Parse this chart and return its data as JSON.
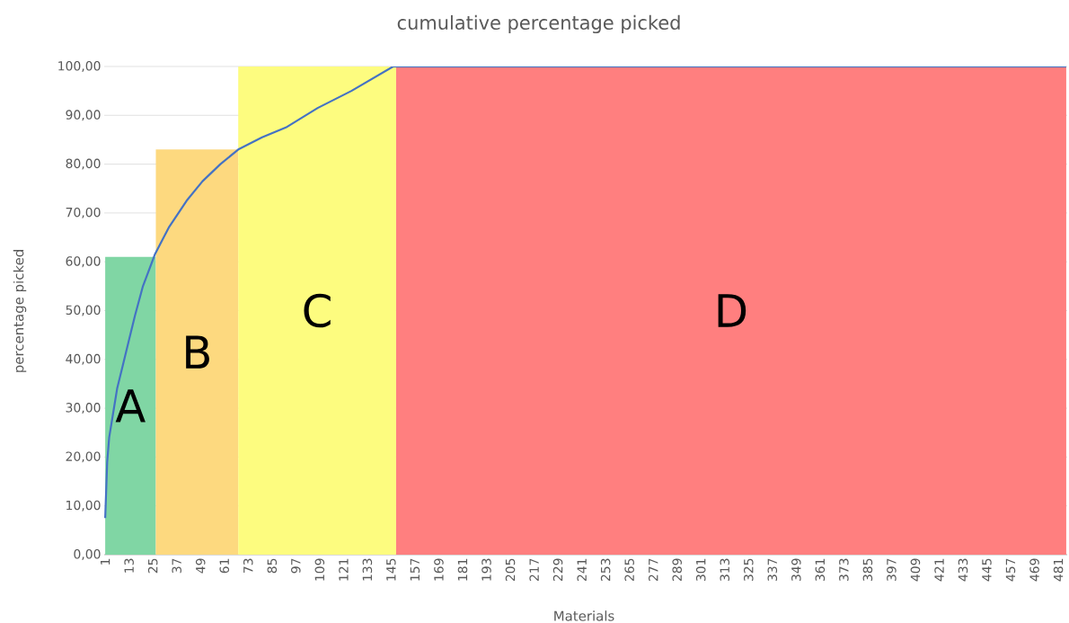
{
  "chart_data": {
    "type": "line",
    "title": "cumulative percentage picked",
    "xlabel": "Materials",
    "ylabel": "percentage picked",
    "series": [
      {
        "name": "A",
        "type": "area",
        "color": "#80d6a4",
        "x": [
          1,
          26.5
        ],
        "values": [
          61,
          61
        ]
      },
      {
        "name": "B",
        "type": "area",
        "color": "#fdd97f",
        "x": [
          26.5,
          68
        ],
        "values": [
          83,
          83
        ]
      },
      {
        "name": "C",
        "type": "area",
        "color": "#fdfc7f",
        "x": [
          68,
          147.5
        ],
        "values": [
          100,
          100
        ]
      },
      {
        "name": "D",
        "type": "area",
        "color": "#ff7f7f",
        "x": [
          147.5,
          485
        ],
        "values": [
          100,
          100
        ]
      },
      {
        "color": "#4472c4",
        "x": [
          1,
          2,
          3,
          5,
          7,
          10,
          13,
          16,
          20,
          26,
          33,
          42,
          50,
          59,
          68,
          80,
          92,
          108,
          125,
          146,
          485
        ],
        "values": [
          7.5,
          19,
          24,
          29,
          34,
          39,
          44,
          49,
          55,
          61.5,
          67,
          72.5,
          76.5,
          80,
          83,
          85.5,
          87.5,
          91.5,
          95,
          100,
          100
        ]
      }
    ],
    "xlim": [
      0.5,
      485.5
    ],
    "xticks": [
      1,
      13,
      25,
      37,
      49,
      61,
      73,
      85,
      97,
      109,
      121,
      133,
      145,
      157,
      169,
      181,
      193,
      205,
      217,
      229,
      241,
      253,
      265,
      277,
      289,
      301,
      313,
      325,
      337,
      349,
      361,
      373,
      385,
      397,
      409,
      421,
      433,
      445,
      457,
      469,
      481
    ],
    "ylim": [
      0,
      100
    ],
    "yticks": [
      {
        "value": 0,
        "label": "0,00"
      },
      {
        "value": 10,
        "label": "10,00"
      },
      {
        "value": 20,
        "label": "20,00"
      },
      {
        "value": 30,
        "label": "30,00"
      },
      {
        "value": 40,
        "label": "40,00"
      },
      {
        "value": 50,
        "label": "50,00"
      },
      {
        "value": 60,
        "label": "60,00"
      },
      {
        "value": 70,
        "label": "70,00"
      },
      {
        "value": 80,
        "label": "80,00"
      },
      {
        "value": 90,
        "label": "90,00"
      },
      {
        "value": 100,
        "label": "100,00"
      }
    ],
    "grid": "y"
  }
}
